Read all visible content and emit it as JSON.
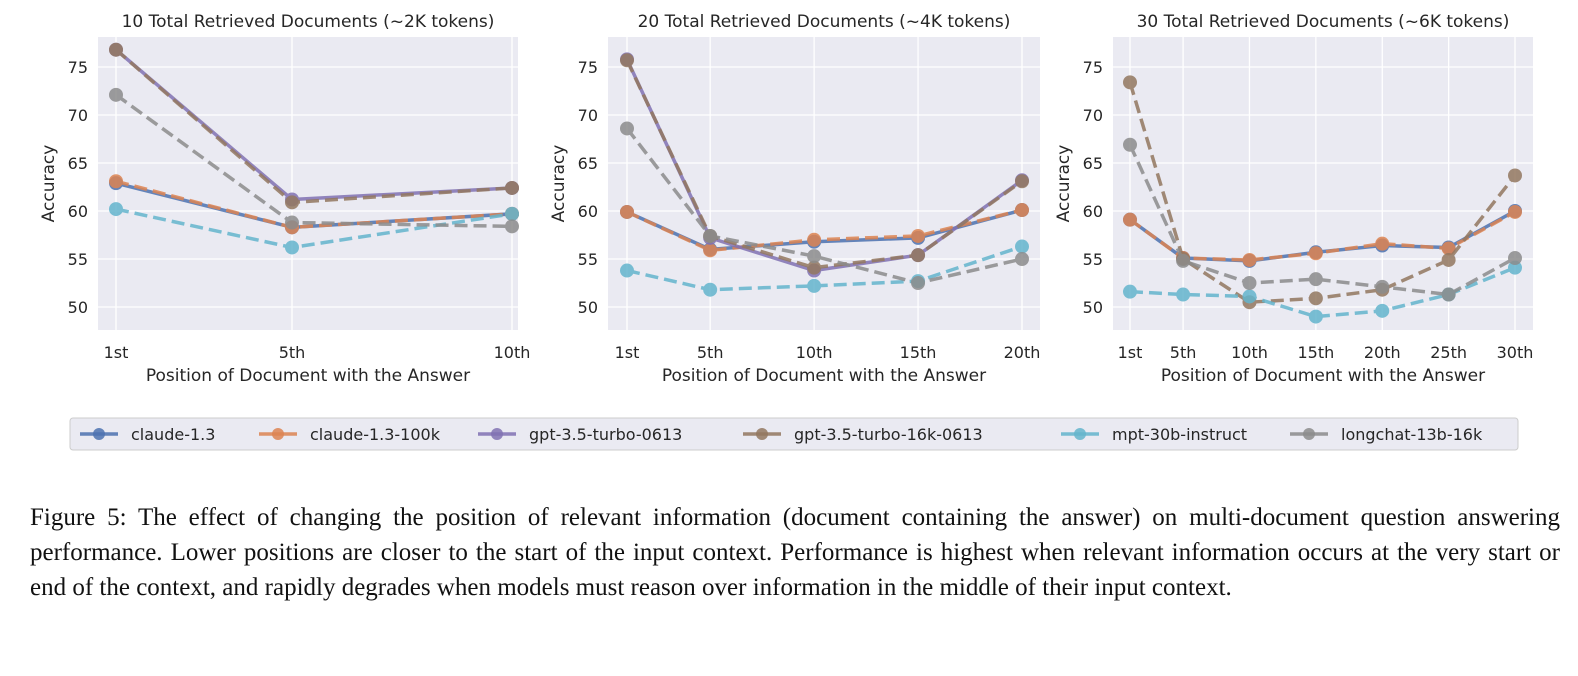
{
  "chart_data": [
    {
      "type": "line",
      "title": "10 Total Retrieved Documents (~2K tokens)",
      "xlabel": "Position of Document with the Answer",
      "ylabel": "Accuracy",
      "x": [
        1,
        5,
        10
      ],
      "xticklabels": [
        "1st",
        "5th",
        "10th"
      ],
      "yticks": [
        50,
        55,
        60,
        65,
        70,
        75
      ],
      "ylim": [
        47.6,
        78.1
      ],
      "grid": true,
      "series": [
        {
          "name": "claude-1.3",
          "values": [
            62.9,
            58.3,
            59.7
          ]
        },
        {
          "name": "claude-1.3-100k",
          "values": [
            63.1,
            58.3,
            59.7
          ]
        },
        {
          "name": "gpt-3.5-turbo-0613",
          "values": [
            76.8,
            61.2,
            62.4
          ]
        },
        {
          "name": "gpt-3.5-turbo-16k-0613",
          "values": [
            76.8,
            60.9,
            62.4
          ]
        },
        {
          "name": "mpt-30b-instruct",
          "values": [
            60.2,
            56.2,
            59.7
          ]
        },
        {
          "name": "longchat-13b-16k",
          "values": [
            72.1,
            58.8,
            58.4
          ]
        }
      ]
    },
    {
      "type": "line",
      "title": "20 Total Retrieved Documents (~4K tokens)",
      "xlabel": "Position of Document with the Answer",
      "ylabel": "Accuracy",
      "x": [
        1,
        5,
        10,
        15,
        20
      ],
      "xticklabels": [
        "1st",
        "5th",
        "10th",
        "15th",
        "20th"
      ],
      "yticks": [
        50,
        55,
        60,
        65,
        70,
        75
      ],
      "ylim": [
        47.6,
        78.1
      ],
      "grid": true,
      "series": [
        {
          "name": "claude-1.3",
          "values": [
            59.9,
            56.0,
            56.8,
            57.2,
            60.1
          ]
        },
        {
          "name": "claude-1.3-100k",
          "values": [
            59.9,
            55.9,
            57.0,
            57.4,
            60.1
          ]
        },
        {
          "name": "gpt-3.5-turbo-0613",
          "values": [
            75.8,
            57.2,
            53.8,
            55.4,
            63.2
          ]
        },
        {
          "name": "gpt-3.5-turbo-16k-0613",
          "values": [
            75.7,
            57.4,
            54.1,
            55.4,
            63.1
          ]
        },
        {
          "name": "mpt-30b-instruct",
          "values": [
            53.8,
            51.8,
            52.2,
            52.7,
            56.3
          ]
        },
        {
          "name": "longchat-13b-16k",
          "values": [
            68.6,
            57.4,
            55.3,
            52.5,
            55.0
          ]
        }
      ]
    },
    {
      "type": "line",
      "title": "30 Total Retrieved Documents (~6K tokens)",
      "xlabel": "Position of Document with the Answer",
      "ylabel": "Accuracy",
      "x": [
        1,
        5,
        10,
        15,
        20,
        25,
        30
      ],
      "xticklabels": [
        "1st",
        "5th",
        "10th",
        "15th",
        "20th",
        "25th",
        "30th"
      ],
      "yticks": [
        50,
        55,
        60,
        65,
        70,
        75
      ],
      "ylim": [
        47.6,
        78.1
      ],
      "grid": true,
      "series": [
        {
          "name": "claude-1.3",
          "values": [
            59.1,
            55.1,
            54.8,
            55.7,
            56.4,
            56.2,
            60.0
          ]
        },
        {
          "name": "claude-1.3-100k",
          "values": [
            59.1,
            55.1,
            54.9,
            55.6,
            56.6,
            56.1,
            59.9
          ]
        },
        {
          "name": "gpt-3.5-turbo-16k-0613",
          "values": [
            73.4,
            55.0,
            50.5,
            50.9,
            51.8,
            54.9,
            63.7
          ]
        },
        {
          "name": "mpt-30b-instruct",
          "values": [
            51.6,
            51.3,
            51.1,
            49.0,
            49.6,
            51.3,
            54.1
          ]
        },
        {
          "name": "longchat-13b-16k",
          "values": [
            66.9,
            54.8,
            52.5,
            52.9,
            52.1,
            51.3,
            55.1
          ]
        }
      ]
    }
  ],
  "legend": {
    "placement": "bottom",
    "entries": [
      {
        "name": "claude-1.3",
        "color": "#4C72B0",
        "dashed": false
      },
      {
        "name": "claude-1.3-100k",
        "color": "#DD8452",
        "dashed": true
      },
      {
        "name": "gpt-3.5-turbo-0613",
        "color": "#8172B3",
        "dashed": false
      },
      {
        "name": "gpt-3.5-turbo-16k-0613",
        "color": "#937860",
        "dashed": true
      },
      {
        "name": "mpt-30b-instruct",
        "color": "#64B5CD",
        "dashed": true
      },
      {
        "name": "longchat-13b-16k",
        "color": "#8C8C8C",
        "dashed": true
      }
    ]
  },
  "caption": "Figure 5: The effect of changing the position of relevant information (document containing the answer) on multi-document question answering performance. Lower positions are closer to the start of the input context. Performance is highest when relevant information occurs at the very start or end of the context, and rapidly degrades when models must reason over information in the middle of their input context."
}
